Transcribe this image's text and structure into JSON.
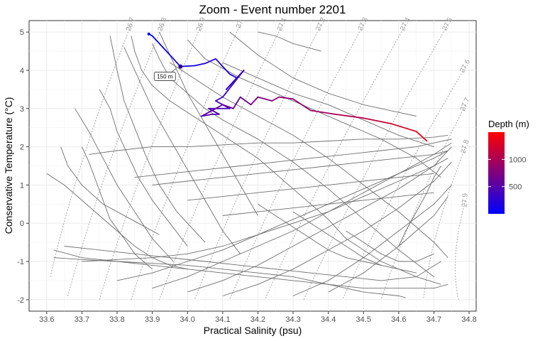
{
  "chart_data": {
    "type": "line",
    "title": "Zoom - Event number 2201",
    "xlabel": "Practical Salinity (psu)",
    "ylabel": "Conservative Temperature (°C)",
    "xlim": [
      33.55,
      34.82
    ],
    "ylim": [
      -2.3,
      5.3
    ],
    "x_ticks": [
      33.6,
      33.7,
      33.8,
      33.9,
      34.0,
      34.1,
      34.2,
      34.3,
      34.4,
      34.5,
      34.6,
      34.7,
      34.8
    ],
    "y_ticks": [
      -2,
      -1,
      0,
      1,
      2,
      3,
      4,
      5
    ],
    "grid": true,
    "isopycnals": {
      "labels": [
        "26.7",
        "26.8",
        "26.9",
        "27",
        "27.1",
        "27.2",
        "27.3",
        "27.4",
        "27.5",
        "27.6",
        "27.7",
        "27.8",
        "27.9"
      ],
      "label_points": [
        [
          33.84,
          5.2
        ],
        [
          33.93,
          5.2
        ],
        [
          34.04,
          5.2
        ],
        [
          34.15,
          5.2
        ],
        [
          34.27,
          5.2
        ],
        [
          34.38,
          5.2
        ],
        [
          34.5,
          5.2
        ],
        [
          34.62,
          5.2
        ],
        [
          34.74,
          5.2
        ],
        [
          34.79,
          4.1
        ],
        [
          34.79,
          3.1
        ],
        [
          34.79,
          2.0
        ],
        [
          34.79,
          0.6
        ]
      ],
      "bottom_points": [
        [
          33.61,
          -1.4
        ],
        [
          33.66,
          -1.9
        ],
        [
          33.75,
          -2.0
        ],
        [
          33.84,
          -2.0
        ],
        [
          33.92,
          -2.0
        ],
        [
          34.02,
          -2.0
        ],
        [
          34.12,
          -2.0
        ],
        [
          34.22,
          -2.0
        ],
        [
          34.33,
          -2.0
        ],
        [
          34.44,
          -2.0
        ],
        [
          34.55,
          -2.0
        ],
        [
          34.67,
          -2.0
        ],
        [
          34.77,
          -2.0
        ]
      ],
      "color": "#aaaaaa"
    },
    "background_series": [
      {
        "x": [
          33.84,
          33.85,
          33.87,
          33.9,
          33.95,
          34.0,
          34.05,
          34.1,
          34.15,
          34.2,
          34.25,
          34.3,
          34.35,
          34.4,
          34.45,
          34.55,
          34.65,
          34.72
        ],
        "y": [
          4.9,
          4.5,
          4.0,
          3.6,
          3.2,
          2.9,
          2.6,
          2.3,
          2.0,
          1.7,
          1.3,
          0.9,
          0.5,
          0.1,
          -0.4,
          -1.0,
          -1.4,
          -1.6
        ]
      },
      {
        "x": [
          33.9,
          33.92,
          33.95,
          34.0,
          34.05,
          34.1,
          34.2,
          34.3,
          34.4,
          34.5,
          34.6,
          34.7
        ],
        "y": [
          4.7,
          4.3,
          3.8,
          3.4,
          3.0,
          2.7,
          2.2,
          1.6,
          0.9,
          0.1,
          -0.7,
          -1.4
        ]
      },
      {
        "x": [
          33.95,
          34.0,
          34.05,
          34.1,
          34.2,
          34.3,
          34.4,
          34.5,
          34.6,
          34.7,
          34.74
        ],
        "y": [
          4.2,
          3.9,
          3.6,
          3.3,
          2.8,
          2.3,
          1.7,
          1.0,
          0.3,
          -0.5,
          -0.9
        ]
      },
      {
        "x": [
          34.0,
          34.05,
          34.15,
          34.25,
          34.35,
          34.45,
          34.55,
          34.65,
          34.72
        ],
        "y": [
          4.8,
          4.3,
          3.8,
          3.4,
          3.0,
          2.6,
          2.2,
          1.7,
          1.2
        ]
      },
      {
        "x": [
          34.12,
          34.2,
          34.3,
          34.4,
          34.5,
          34.6,
          34.65
        ],
        "y": [
          5.0,
          4.4,
          3.8,
          3.4,
          3.1,
          2.9,
          2.8
        ]
      },
      {
        "x": [
          34.1,
          34.2,
          34.3,
          34.4,
          34.5,
          34.6,
          34.7
        ],
        "y": [
          4.2,
          3.8,
          3.4,
          3.1,
          2.7,
          2.3,
          2.0
        ]
      },
      {
        "x": [
          34.2,
          34.25,
          34.3,
          34.38
        ],
        "y": [
          5.0,
          4.9,
          4.7,
          4.5
        ]
      },
      {
        "x": [
          33.62,
          33.7,
          33.8,
          33.9,
          34.0,
          34.1,
          34.2,
          34.3,
          34.4,
          34.5,
          34.6,
          34.7,
          34.74
        ],
        "y": [
          -0.7,
          -0.9,
          -1.0,
          -1.1,
          -1.2,
          -1.3,
          -1.4,
          -1.5,
          -1.6,
          -1.7,
          -1.7,
          -1.7,
          -1.6
        ]
      },
      {
        "x": [
          33.62,
          33.7,
          33.8,
          33.9,
          34.0,
          34.1,
          34.2,
          34.3,
          34.4,
          34.5,
          34.6,
          34.62
        ],
        "y": [
          -0.9,
          -0.95,
          -1.0,
          -1.05,
          -1.1,
          -1.2,
          -1.3,
          -1.4,
          -1.6,
          -1.8,
          -1.9,
          -1.95
        ]
      },
      {
        "x": [
          33.65,
          33.75,
          33.85,
          33.95,
          34.05,
          34.15,
          34.25,
          34.35,
          34.45,
          34.55,
          34.65,
          34.72
        ],
        "y": [
          -0.6,
          -0.7,
          -0.8,
          -0.9,
          -1.0,
          -1.1,
          -1.2,
          -1.3,
          -1.4,
          -1.5,
          -1.4,
          -1.0
        ]
      },
      {
        "x": [
          33.7,
          33.8,
          33.9,
          34.0,
          34.1,
          34.2,
          34.3,
          34.4,
          34.5,
          34.6,
          34.7,
          34.74
        ],
        "y": [
          -1.0,
          -0.95,
          -0.9,
          -0.8,
          -0.6,
          -0.3,
          0.0,
          0.3,
          0.7,
          1.1,
          1.5,
          1.7
        ]
      },
      {
        "x": [
          33.8,
          33.9,
          34.0,
          34.1,
          34.2,
          34.3,
          34.4,
          34.5,
          34.6,
          34.7,
          34.74
        ],
        "y": [
          -1.5,
          -1.3,
          -1.0,
          -0.7,
          -0.3,
          0.1,
          0.5,
          0.9,
          1.3,
          1.7,
          1.9
        ]
      },
      {
        "x": [
          33.9,
          34.0,
          34.1,
          34.2,
          34.3,
          34.4,
          34.5,
          34.6,
          34.7,
          34.75
        ],
        "y": [
          -1.7,
          -1.4,
          -1.0,
          -0.6,
          -0.2,
          0.3,
          0.8,
          1.3,
          1.8,
          2.1
        ]
      },
      {
        "x": [
          34.0,
          34.1,
          34.2,
          34.3,
          34.4,
          34.5,
          34.6,
          34.7,
          34.75
        ],
        "y": [
          -1.8,
          -1.5,
          -1.1,
          -0.6,
          -0.1,
          0.4,
          0.9,
          1.5,
          2.0
        ]
      },
      {
        "x": [
          34.1,
          34.2,
          34.3,
          34.4,
          34.5,
          34.6,
          34.7,
          34.75
        ],
        "y": [
          -1.9,
          -1.6,
          -1.2,
          -0.7,
          -0.2,
          0.4,
          1.1,
          1.6
        ]
      },
      {
        "x": [
          34.3,
          34.4,
          34.5,
          34.6,
          34.7,
          34.75
        ],
        "y": [
          -1.9,
          -1.5,
          -0.9,
          -0.2,
          0.5,
          1.0
        ]
      },
      {
        "x": [
          34.4,
          34.5,
          34.6,
          34.7,
          34.74
        ],
        "y": [
          -1.8,
          -1.3,
          -0.6,
          0.2,
          0.7
        ]
      },
      {
        "x": [
          33.85,
          33.95,
          34.05,
          34.15,
          34.25,
          34.35,
          34.45,
          34.55,
          34.65,
          34.75
        ],
        "y": [
          1.2,
          1.3,
          1.4,
          1.5,
          1.6,
          1.7,
          1.8,
          1.9,
          2.0,
          2.2
        ]
      },
      {
        "x": [
          33.72,
          33.8,
          33.9,
          34.0,
          34.1,
          34.2,
          34.3,
          34.4,
          34.5,
          34.6,
          34.7,
          34.74
        ],
        "y": [
          1.8,
          1.9,
          2.0,
          2.0,
          2.05,
          2.1,
          2.1,
          2.15,
          2.2,
          2.2,
          2.25,
          2.3
        ]
      },
      {
        "x": [
          33.9,
          34.0,
          34.1,
          34.2,
          34.3,
          34.4,
          34.5,
          34.6,
          34.7,
          34.74
        ],
        "y": [
          1.0,
          1.1,
          1.2,
          1.3,
          1.4,
          1.5,
          1.6,
          1.7,
          1.8,
          1.9
        ]
      },
      {
        "x": [
          34.0,
          34.1,
          34.2,
          34.3,
          34.4,
          34.5,
          34.6,
          34.7
        ],
        "y": [
          0.6,
          0.7,
          0.8,
          0.9,
          1.0,
          1.1,
          1.2,
          1.3
        ]
      },
      {
        "x": [
          34.1,
          34.2,
          34.3,
          34.4,
          34.5,
          34.6,
          34.7
        ],
        "y": [
          0.2,
          0.3,
          0.4,
          0.5,
          0.6,
          0.7,
          0.8
        ]
      },
      {
        "x": [
          33.6,
          33.65,
          33.7,
          33.75,
          33.8,
          33.85,
          33.9,
          33.95,
          34.0
        ],
        "y": [
          1.3,
          1.0,
          0.6,
          0.2,
          -0.2,
          -0.6,
          -0.9,
          -1.1,
          -1.2
        ]
      },
      {
        "x": [
          33.7,
          33.72,
          33.74,
          33.76,
          33.78,
          33.82,
          33.85,
          33.9
        ],
        "y": [
          2.0,
          1.6,
          1.1,
          0.6,
          0.1,
          -0.4,
          -0.8,
          -1.2
        ]
      },
      {
        "x": [
          33.75,
          33.78,
          33.8,
          33.83,
          33.86,
          33.9,
          33.95,
          34.0
        ],
        "y": [
          3.5,
          3.0,
          2.4,
          1.8,
          1.2,
          0.6,
          0.0,
          -0.6
        ]
      },
      {
        "x": [
          33.78,
          33.8,
          33.82,
          33.85,
          33.88,
          33.92,
          33.97,
          34.05
        ],
        "y": [
          4.9,
          4.0,
          3.2,
          2.5,
          1.8,
          1.0,
          0.3,
          -0.5
        ]
      },
      {
        "x": [
          33.68,
          33.72,
          33.76,
          33.8,
          33.85,
          33.9,
          33.96
        ],
        "y": [
          3.0,
          2.4,
          1.7,
          1.0,
          0.3,
          -0.4,
          -1.0
        ]
      },
      {
        "x": [
          33.82,
          33.86,
          33.9,
          33.95,
          34.0,
          34.05,
          34.1,
          34.15
        ],
        "y": [
          4.6,
          3.8,
          3.0,
          2.2,
          1.4,
          0.6,
          -0.2,
          -0.8
        ]
      },
      {
        "x": [
          33.92,
          33.96,
          34.0,
          34.05,
          34.1,
          34.15,
          34.2
        ],
        "y": [
          5.0,
          4.2,
          3.4,
          2.6,
          1.8,
          1.0,
          0.2
        ]
      },
      {
        "x": [
          33.64,
          33.66,
          33.7,
          33.76,
          33.84,
          33.92
        ],
        "y": [
          2.0,
          1.5,
          1.0,
          0.5,
          0.1,
          -0.3
        ]
      },
      {
        "x": [
          34.2,
          34.25,
          34.3,
          34.35,
          34.4,
          34.45,
          34.5,
          34.55
        ],
        "y": [
          0.5,
          0.2,
          -0.1,
          -0.4,
          -0.7,
          -0.9,
          -1.0,
          -1.1
        ]
      },
      {
        "x": [
          34.3,
          34.35,
          34.4,
          34.45,
          34.5,
          34.55,
          34.6,
          34.65
        ],
        "y": [
          0.3,
          0.0,
          -0.3,
          -0.6,
          -0.9,
          -1.1,
          -1.2,
          -1.3
        ]
      },
      {
        "x": [
          34.45,
          34.5,
          34.55,
          34.6,
          34.65,
          34.7
        ],
        "y": [
          -0.2,
          -0.5,
          -0.8,
          -1.0,
          -1.0,
          -0.8
        ]
      },
      {
        "x": [
          34.6,
          34.62,
          34.65,
          34.68,
          34.7,
          34.72
        ],
        "y": [
          -0.6,
          -0.2,
          0.3,
          0.8,
          1.2,
          1.5
        ]
      }
    ],
    "highlight_series": {
      "x": [
        33.89,
        33.9,
        33.93,
        33.96,
        33.98,
        34.02,
        34.05,
        34.08,
        34.1,
        34.12,
        34.14,
        34.11,
        34.16,
        34.1,
        34.08,
        34.12,
        34.06,
        34.09,
        34.07,
        34.04,
        34.06,
        34.1,
        34.13,
        34.15,
        34.18,
        34.2,
        34.24,
        34.26,
        34.3,
        34.35,
        34.42,
        34.5,
        34.58,
        34.65,
        34.68
      ],
      "y": [
        4.95,
        4.9,
        4.6,
        4.3,
        4.1,
        4.12,
        4.18,
        4.3,
        4.1,
        3.9,
        3.8,
        3.5,
        4.0,
        3.3,
        3.2,
        3.0,
        3.0,
        2.85,
        2.85,
        2.8,
        2.9,
        3.1,
        3.0,
        3.3,
        3.1,
        3.3,
        3.2,
        3.3,
        3.25,
        2.95,
        2.85,
        2.75,
        2.6,
        2.4,
        2.15
      ],
      "depth": [
        5,
        15,
        40,
        80,
        120,
        150,
        170,
        190,
        210,
        230,
        250,
        280,
        300,
        330,
        360,
        390,
        420,
        450,
        480,
        500,
        530,
        560,
        600,
        640,
        680,
        720,
        760,
        800,
        850,
        920,
        1000,
        1100,
        1200,
        1320,
        1450
      ]
    },
    "annotation": {
      "label": "150 m",
      "x": 33.98,
      "y": 4.1
    },
    "legend": {
      "title": "Depth (m)",
      "ticks": [
        500,
        1000
      ],
      "range": [
        0,
        1500
      ],
      "colors": [
        "#0000ff",
        "#ff0000"
      ],
      "placement": "right"
    }
  }
}
